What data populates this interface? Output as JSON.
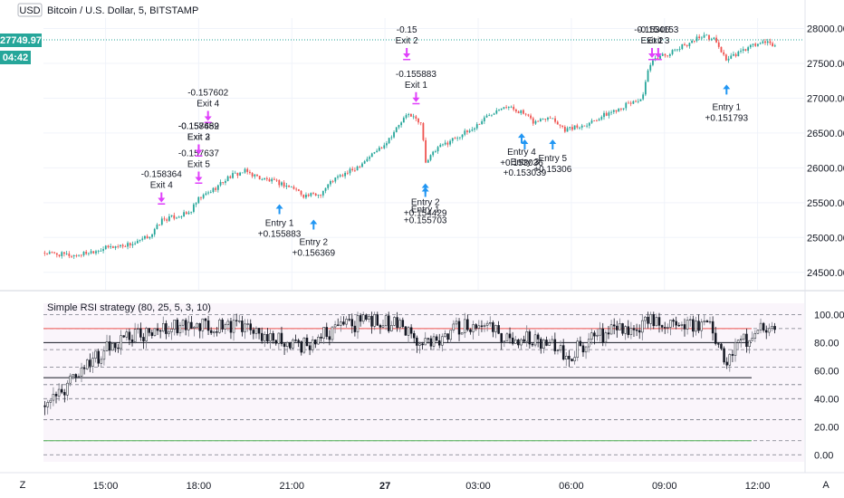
{
  "header": {
    "currency_button": "USD",
    "title": "Bitcoin / U.S. Dollar, 5, BITSTAMP"
  },
  "price_badge": {
    "price": "27749.97",
    "countdown": "04:42",
    "color": "#26a69a"
  },
  "footer": {
    "zoom_button": "Z",
    "auto_button": "A"
  },
  "colors": {
    "up": "#26a69a",
    "down": "#ef5350",
    "entry": "#2196f3",
    "exit": "#e040fb",
    "rsi_bar": "#131722"
  },
  "chart_data": [
    {
      "type": "candlestick",
      "title": "Bitcoin / U.S. Dollar, 5, BITSTAMP",
      "y_ticks": [
        "24500.00",
        "25000.00",
        "25500.00",
        "26000.00",
        "26500.00",
        "27000.00",
        "27500.00",
        "28000.00"
      ],
      "y_tick_values": [
        24500,
        25000,
        25500,
        26000,
        26500,
        27000,
        27500,
        28000
      ],
      "ylim": [
        24250,
        28150
      ],
      "x_ticks": [
        "15:00",
        "18:00",
        "21:00",
        "27",
        "03:00",
        "06:00",
        "09:00",
        "12:00"
      ],
      "x_tick_hours": [
        15,
        18,
        21,
        24,
        27,
        30,
        33,
        36
      ],
      "xlim": [
        13.0,
        37.5
      ],
      "last_price": 27749.97,
      "close_path": [
        [
          13.0,
          24780
        ],
        [
          14.0,
          24740
        ],
        [
          15.0,
          24850
        ],
        [
          16.0,
          24920
        ],
        [
          16.5,
          25050
        ],
        [
          16.8,
          25250
        ],
        [
          17.7,
          25350
        ],
        [
          18.0,
          25550
        ],
        [
          18.5,
          25700
        ],
        [
          19.0,
          25880
        ],
        [
          19.5,
          25950
        ],
        [
          20.0,
          25850
        ],
        [
          20.6,
          25780
        ],
        [
          21.1,
          25700
        ],
        [
          21.4,
          25600
        ],
        [
          21.9,
          25620
        ],
        [
          22.3,
          25820
        ],
        [
          23.0,
          25980
        ],
        [
          23.6,
          26200
        ],
        [
          24.0,
          26350
        ],
        [
          24.6,
          26700
        ],
        [
          24.8,
          26780
        ],
        [
          25.2,
          26600
        ],
        [
          25.3,
          26080
        ],
        [
          25.7,
          26280
        ],
        [
          26.2,
          26420
        ],
        [
          26.8,
          26550
        ],
        [
          27.3,
          26750
        ],
        [
          27.8,
          26900
        ],
        [
          28.4,
          26800
        ],
        [
          28.8,
          26650
        ],
        [
          29.3,
          26750
        ],
        [
          29.8,
          26550
        ],
        [
          30.3,
          26600
        ],
        [
          30.8,
          26700
        ],
        [
          31.5,
          26850
        ],
        [
          32.0,
          26950
        ],
        [
          32.3,
          27000
        ],
        [
          32.5,
          27450
        ],
        [
          32.8,
          27600
        ],
        [
          33.2,
          27650
        ],
        [
          33.8,
          27800
        ],
        [
          34.2,
          27900
        ],
        [
          34.6,
          27850
        ],
        [
          35.0,
          27550
        ],
        [
          35.4,
          27650
        ],
        [
          35.8,
          27750
        ],
        [
          36.2,
          27800
        ],
        [
          36.6,
          27750
        ]
      ],
      "entries": [
        {
          "hour": 20.6,
          "label": "Entry 1",
          "value": "+0.155883"
        },
        {
          "hour": 21.7,
          "label": "Entry 2",
          "value": "+0.156369"
        },
        {
          "hour": 25.3,
          "label": "Entry 2",
          "value": "+0.154429"
        },
        {
          "hour": 25.3,
          "label": "Entry 1",
          "value": "+0.155703"
        },
        {
          "hour": 28.4,
          "label": "Entry 4",
          "value": "+0.153036"
        },
        {
          "hour": 28.5,
          "label": "Entry 3",
          "value": "+0.153039"
        },
        {
          "hour": 29.4,
          "label": "Entry 5",
          "value": "+0.15306"
        },
        {
          "hour": 35.0,
          "label": "Entry 1",
          "value": "+0.151793"
        }
      ],
      "exits": [
        {
          "hour": 16.8,
          "label": "Exit 4",
          "value": "-0.158364"
        },
        {
          "hour": 18.0,
          "label": "Exit 3",
          "value": "-0.158452"
        },
        {
          "hour": 18.3,
          "label": "Exit 4",
          "value": "-0.157602"
        },
        {
          "hour": 18.0,
          "label": "Exit 5",
          "value": "-0.157637"
        },
        {
          "hour": 18.0,
          "label": "Exit 2",
          "value": "-0.157689"
        },
        {
          "hour": 24.7,
          "label": "Exit 2",
          "value": "-0.15"
        },
        {
          "hour": 25.0,
          "label": "Exit 1",
          "value": "-0.155883"
        },
        {
          "hour": 32.6,
          "label": "Exit 2",
          "value": "-0.15306"
        },
        {
          "hour": 32.8,
          "label": "Exit 3",
          "value": "-0.154153"
        }
      ]
    },
    {
      "type": "bar",
      "title": "Simple RSI strategy (80, 25, 5, 3, 10)",
      "y_ticks": [
        "0.00",
        "20.00",
        "40.00",
        "60.00",
        "80.00",
        "100.00"
      ],
      "y_tick_values": [
        0,
        20,
        40,
        60,
        80,
        100
      ],
      "ylim": [
        -5,
        108
      ],
      "dashed_levels": [
        0,
        10,
        25,
        40,
        50,
        62.5,
        75,
        90,
        100
      ],
      "lines": [
        {
          "level": 90,
          "color": "#ef5350"
        },
        {
          "level": 80,
          "color": "#131722"
        },
        {
          "level": 55,
          "color": "#131722"
        },
        {
          "level": 10,
          "color": "#4caf50"
        }
      ],
      "rsi_path": [
        [
          13.0,
          35
        ],
        [
          13.5,
          42
        ],
        [
          14.0,
          60
        ],
        [
          14.5,
          65
        ],
        [
          15.0,
          75
        ],
        [
          15.5,
          82
        ],
        [
          16.0,
          85
        ],
        [
          16.5,
          88
        ],
        [
          17.0,
          92
        ],
        [
          17.5,
          90
        ],
        [
          18.0,
          93
        ],
        [
          18.5,
          91
        ],
        [
          19.0,
          90
        ],
        [
          19.5,
          92
        ],
        [
          20.0,
          86
        ],
        [
          20.5,
          84
        ],
        [
          21.0,
          80
        ],
        [
          21.5,
          78
        ],
        [
          22.0,
          86
        ],
        [
          22.5,
          90
        ],
        [
          23.0,
          93
        ],
        [
          23.5,
          95
        ],
        [
          24.0,
          94
        ],
        [
          24.5,
          92
        ],
        [
          25.0,
          80
        ],
        [
          25.5,
          78
        ],
        [
          26.0,
          86
        ],
        [
          26.5,
          93
        ],
        [
          27.0,
          94
        ],
        [
          27.5,
          88
        ],
        [
          28.0,
          80
        ],
        [
          28.5,
          84
        ],
        [
          29.0,
          80
        ],
        [
          29.5,
          76
        ],
        [
          30.0,
          72
        ],
        [
          30.5,
          80
        ],
        [
          31.0,
          86
        ],
        [
          31.5,
          90
        ],
        [
          32.0,
          88
        ],
        [
          32.5,
          94
        ],
        [
          33.0,
          95
        ],
        [
          33.5,
          92
        ],
        [
          34.0,
          94
        ],
        [
          34.5,
          92
        ],
        [
          35.0,
          68
        ],
        [
          35.5,
          80
        ],
        [
          36.0,
          90
        ],
        [
          36.6,
          88
        ]
      ]
    }
  ]
}
